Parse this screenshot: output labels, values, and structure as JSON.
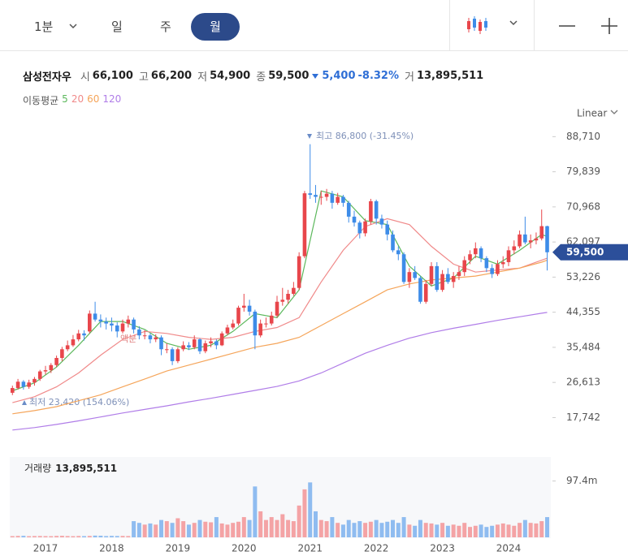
{
  "toolbar": {
    "tabs": [
      "1분",
      "일",
      "주",
      "월"
    ]
  },
  "header": {
    "name": "삼성전자우",
    "open_label": "시",
    "open": "66,100",
    "high_label": "고",
    "high": "66,200",
    "low_label": "저",
    "low": "54,900",
    "close_label": "종",
    "close": "59,500",
    "change": "5,400",
    "change_pct": "-8.32%",
    "volume_label": "거",
    "volume": "13,895,511"
  },
  "chart_data": {
    "type": "candlestick",
    "scale_label": "Linear",
    "ma_legend": "이동평균",
    "annotations": [
      "최고 86,800 (-31.45%)",
      "최저 23,420 (154.06%)",
      "액분"
    ],
    "up_color": "#e8464b",
    "down_color": "#3d8ce8",
    "categories": [
      null,
      null,
      null,
      null,
      null,
      null,
      "2017",
      null,
      null,
      null,
      null,
      null,
      null,
      null,
      null,
      null,
      null,
      null,
      "2018",
      null,
      null,
      null,
      null,
      null,
      null,
      null,
      null,
      null,
      null,
      null,
      "2019",
      null,
      null,
      null,
      null,
      null,
      null,
      null,
      null,
      null,
      null,
      null,
      "2020",
      null,
      null,
      null,
      null,
      null,
      null,
      null,
      null,
      null,
      null,
      null,
      "2021",
      null,
      null,
      null,
      null,
      null,
      null,
      null,
      null,
      null,
      null,
      null,
      "2022",
      null,
      null,
      null,
      null,
      null,
      null,
      null,
      null,
      null,
      null,
      null,
      "2023",
      null,
      null,
      null,
      null,
      null,
      null,
      null,
      null,
      null,
      null,
      null,
      "2024",
      null,
      null,
      null,
      null,
      null,
      null,
      null
    ],
    "candles": [
      [
        24000,
        25800,
        23420,
        25200
      ],
      [
        25200,
        27500,
        24800,
        26800
      ],
      [
        26800,
        27200,
        24800,
        25500
      ],
      [
        25500,
        27300,
        25000,
        26600
      ],
      [
        26600,
        28000,
        25800,
        27500
      ],
      [
        27500,
        29800,
        27000,
        29400
      ],
      [
        29400,
        30800,
        28600,
        29700
      ],
      [
        29700,
        31500,
        29000,
        31000
      ],
      [
        31000,
        33400,
        30500,
        32800
      ],
      [
        32800,
        35600,
        32000,
        35000
      ],
      [
        35000,
        37200,
        34500,
        36000
      ],
      [
        36000,
        38600,
        35600,
        37500
      ],
      [
        37500,
        39900,
        37000,
        39000
      ],
      [
        39000,
        39800,
        37200,
        38500
      ],
      [
        39500,
        44800,
        39000,
        44000
      ],
      [
        44000,
        47000,
        42000,
        42500
      ],
      [
        42500,
        43800,
        40500,
        42000
      ],
      [
        42000,
        43000,
        40000,
        41500
      ],
      [
        41500,
        43000,
        39500,
        41000
      ],
      [
        41000,
        41800,
        38000,
        39500
      ],
      [
        39500,
        42500,
        39000,
        41500
      ],
      [
        41500,
        43500,
        40500,
        42500
      ],
      [
        42500,
        43000,
        39000,
        40000
      ],
      [
        40000,
        40800,
        37500,
        38500
      ],
      [
        38500,
        39800,
        37500,
        38500
      ],
      [
        38500,
        39000,
        36500,
        37500
      ],
      [
        37500,
        38800,
        36800,
        38000
      ],
      [
        38000,
        38500,
        33500,
        35000
      ],
      [
        35000,
        36500,
        34000,
        35000
      ],
      [
        35000,
        35500,
        31000,
        32000
      ],
      [
        32000,
        35500,
        31500,
        35000
      ],
      [
        35000,
        37000,
        34500,
        36000
      ],
      [
        36000,
        36800,
        34800,
        35500
      ],
      [
        35500,
        38500,
        35000,
        37500
      ],
      [
        37500,
        37800,
        33800,
        34500
      ],
      [
        34500,
        37200,
        34000,
        36500
      ],
      [
        36500,
        38000,
        35500,
        37000
      ],
      [
        37000,
        37500,
        35000,
        36000
      ],
      [
        36000,
        39500,
        35800,
        39000
      ],
      [
        39000,
        41200,
        38500,
        40500
      ],
      [
        40500,
        42500,
        40000,
        41500
      ],
      [
        41500,
        46000,
        41000,
        45500
      ],
      [
        45500,
        49000,
        44500,
        46000
      ],
      [
        46000,
        47500,
        43500,
        44500
      ],
      [
        44500,
        45000,
        35000,
        38500
      ],
      [
        38500,
        42500,
        38000,
        41500
      ],
      [
        41500,
        43000,
        40500,
        41500
      ],
      [
        41500,
        44500,
        41000,
        43500
      ],
      [
        43500,
        48500,
        43000,
        47000
      ],
      [
        47000,
        50500,
        46000,
        47500
      ],
      [
        47500,
        50000,
        46500,
        49000
      ],
      [
        49000,
        52000,
        48500,
        50500
      ],
      [
        50500,
        59500,
        50000,
        58500
      ],
      [
        58500,
        75000,
        58000,
        74400
      ],
      [
        74400,
        86800,
        73000,
        74000
      ],
      [
        74000,
        76500,
        72000,
        73500
      ],
      [
        73500,
        75000,
        71500,
        73500
      ],
      [
        73500,
        75500,
        72500,
        74300
      ],
      [
        74300,
        75000,
        70500,
        72000
      ],
      [
        72000,
        74500,
        71500,
        73500
      ],
      [
        73500,
        74000,
        71000,
        72000
      ],
      [
        72000,
        72500,
        67000,
        68500
      ],
      [
        68500,
        70000,
        66000,
        67000
      ],
      [
        67000,
        67500,
        63000,
        64300
      ],
      [
        64300,
        68000,
        63500,
        67300
      ],
      [
        67300,
        73000,
        66500,
        72400
      ],
      [
        72400,
        72800,
        66500,
        68000
      ],
      [
        68000,
        69000,
        65500,
        66500
      ],
      [
        66500,
        67500,
        62500,
        64000
      ],
      [
        64000,
        65000,
        59500,
        60000
      ],
      [
        60000,
        61000,
        57500,
        59000
      ],
      [
        59000,
        59500,
        51500,
        52000
      ],
      [
        52000,
        55500,
        50500,
        54500
      ],
      [
        54500,
        56000,
        52500,
        53000
      ],
      [
        53000,
        53500,
        46500,
        47000
      ],
      [
        47000,
        52500,
        46500,
        51500
      ],
      [
        51500,
        57000,
        51000,
        56000
      ],
      [
        56000,
        57000,
        49500,
        50000
      ],
      [
        50000,
        55000,
        49500,
        54000
      ],
      [
        54000,
        55500,
        51500,
        52000
      ],
      [
        52000,
        54500,
        50500,
        53500
      ],
      [
        53500,
        56000,
        52500,
        54500
      ],
      [
        54500,
        58500,
        53500,
        57500
      ],
      [
        57500,
        60000,
        56500,
        59000
      ],
      [
        59000,
        62000,
        58000,
        60500
      ],
      [
        60500,
        61000,
        57000,
        58000
      ],
      [
        58000,
        58500,
        54500,
        55500
      ],
      [
        55500,
        56500,
        53000,
        54000
      ],
      [
        54000,
        57500,
        53500,
        56500
      ],
      [
        56500,
        58500,
        55500,
        57000
      ],
      [
        57000,
        61000,
        56000,
        60000
      ],
      [
        60000,
        62500,
        59000,
        61000
      ],
      [
        61000,
        65000,
        60500,
        64000
      ],
      [
        64000,
        68500,
        61500,
        62000
      ],
      [
        62000,
        64000,
        60500,
        62500
      ],
      [
        62500,
        64500,
        61500,
        63000
      ],
      [
        63000,
        70300,
        62500,
        66100
      ],
      [
        66100,
        66200,
        54900,
        59500
      ]
    ],
    "ylim": [
      12500,
      93500
    ],
    "yticks": [
      {
        "value": 17742,
        "label": "17,742"
      },
      {
        "value": 26613,
        "label": "26,613"
      },
      {
        "value": 35484,
        "label": "35,484"
      },
      {
        "value": 44355,
        "label": "44,355"
      },
      {
        "value": 53226,
        "label": "53,226"
      },
      {
        "value": 62097,
        "label": "62,097"
      },
      {
        "value": 70968,
        "label": "70,968"
      },
      {
        "value": 79839,
        "label": "79,839"
      },
      {
        "value": 88710,
        "label": "88,710"
      }
    ],
    "series": [
      {
        "name": "5",
        "color": "#5cb85c",
        "x": [
          0,
          4,
          8,
          12,
          16,
          20,
          24,
          28,
          32,
          36,
          40,
          44,
          48,
          52,
          56,
          60,
          64,
          68,
          72,
          76,
          80,
          84,
          88,
          92,
          96,
          97
        ],
        "values": [
          24500,
          26500,
          30500,
          36000,
          42000,
          42000,
          40000,
          36500,
          35000,
          36000,
          39500,
          44000,
          43000,
          50000,
          75000,
          73500,
          67500,
          66500,
          56000,
          51000,
          53000,
          58500,
          56500,
          60000,
          64000,
          63500
        ]
      },
      {
        "name": "20",
        "color": "#f08a8a",
        "x": [
          0,
          4,
          8,
          12,
          16,
          20,
          24,
          28,
          32,
          36,
          40,
          44,
          48,
          52,
          56,
          60,
          64,
          68,
          72,
          76,
          80,
          84,
          88,
          92,
          96,
          97
        ],
        "values": [
          21500,
          23000,
          25500,
          29000,
          33500,
          37500,
          39500,
          39000,
          38000,
          37500,
          38000,
          39500,
          40500,
          43000,
          52000,
          60000,
          66000,
          68000,
          66500,
          61000,
          56500,
          54500,
          55000,
          55500,
          57500,
          58000
        ]
      },
      {
        "name": "60",
        "color": "#f5a55a",
        "x": [
          0,
          4,
          8,
          12,
          16,
          20,
          24,
          28,
          32,
          36,
          40,
          44,
          48,
          52,
          56,
          60,
          64,
          68,
          72,
          76,
          80,
          84,
          88,
          92,
          96,
          97
        ],
        "values": [
          18700,
          19500,
          20500,
          22000,
          23500,
          25500,
          27500,
          29500,
          31000,
          32500,
          34000,
          35500,
          36500,
          38000,
          41000,
          44000,
          47000,
          50000,
          51500,
          52500,
          53000,
          53500,
          54500,
          55500,
          57000,
          57500
        ]
      },
      {
        "name": "120",
        "color": "#b07de8",
        "x": [
          0,
          4,
          8,
          12,
          16,
          20,
          24,
          28,
          32,
          36,
          40,
          44,
          48,
          52,
          56,
          60,
          64,
          68,
          72,
          76,
          80,
          84,
          88,
          92,
          96,
          97
        ],
        "values": [
          14600,
          15200,
          16000,
          16900,
          17900,
          18900,
          19800,
          20700,
          21700,
          22600,
          23600,
          24600,
          25600,
          27000,
          29000,
          31500,
          34000,
          36000,
          37800,
          39200,
          40300,
          41300,
          42300,
          43200,
          44100,
          44300
        ]
      }
    ],
    "volume": {
      "label": "거래량",
      "total": "13,895,511",
      "up_color": "#f4a3a5",
      "down_color": "#8fbcf0",
      "values": [
        2.1,
        2.4,
        2.6,
        2.0,
        2.2,
        2.3,
        2.1,
        2.0,
        2.4,
        2.6,
        2.2,
        2.0,
        2.3,
        2.1,
        2.4,
        3.0,
        2.8,
        2.2,
        2.5,
        2.3,
        2.4,
        2.2,
        28,
        25,
        22,
        24,
        22,
        30,
        28,
        25,
        33,
        28,
        22,
        25,
        30,
        27,
        26,
        35,
        24,
        22,
        25,
        27,
        35,
        30,
        88,
        45,
        30,
        35,
        30,
        40,
        30,
        28,
        55,
        83,
        95,
        45,
        30,
        28,
        35,
        25,
        22,
        30,
        25,
        28,
        25,
        27,
        30,
        25,
        27,
        30,
        25,
        35,
        22,
        20,
        30,
        25,
        24,
        22,
        25,
        20,
        22,
        20,
        25,
        18,
        20,
        22,
        18,
        20,
        22,
        24,
        22,
        20,
        25,
        30,
        25,
        24,
        28,
        35
      ],
      "ylim": [
        0,
        139
      ],
      "yticks": [
        {
          "value": 97.4,
          "label": "97.4m"
        }
      ]
    }
  }
}
